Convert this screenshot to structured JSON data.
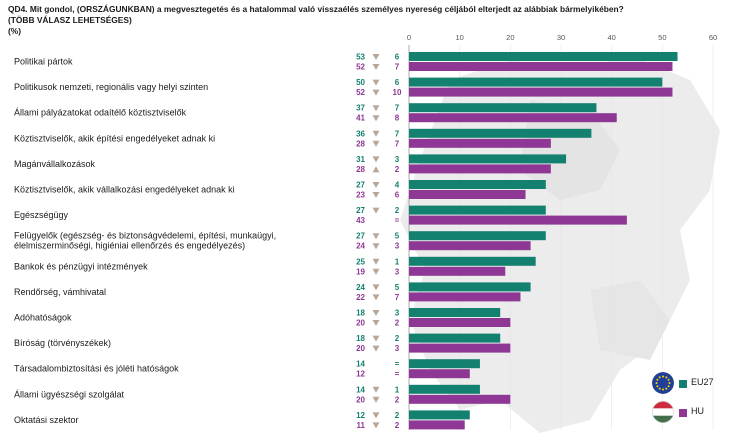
{
  "title": {
    "line1": "QD4. Mit gondol, (ORSZÁGUNKBAN) a megvesztegetés és a hatalommal való visszaélés személyes nyereség céljából elterjedt az alábbiak bármelyikében?",
    "line2": "(TÖBB VÁLASZ LEHETSÉGES)",
    "line3": "(%)"
  },
  "legend": {
    "eu_label": "EU27",
    "hu_label": "HU",
    "eu_icon": "eu-flag-icon",
    "hu_icon": "hungary-flag-icon"
  },
  "colors": {
    "eu": "#14806f",
    "hu": "#8e3795",
    "arrow": "#b7a79b"
  },
  "chart_data": {
    "type": "bar",
    "orientation": "horizontal",
    "xlim": [
      0,
      60
    ],
    "x_ticks": [
      0,
      10,
      20,
      30,
      40,
      50,
      60
    ],
    "categories": [
      "Politikai pártok",
      "Politikusok nemzeti, regionális vagy helyi szinten",
      "Állami pályázatokat odaítélő köztisztviselők",
      "Köztisztviselők, akik építési engedélyeket adnak ki",
      "Magánvállalkozások",
      "Köztisztviselők, akik vállalkozási engedélyeket adnak ki",
      "Egészségügy",
      "Felügyelők (egészség- és biztonságvédelemi, építési, munkaügyi, élelmiszerminőségi, higiéniai ellenőrzés és engedélyezés)",
      "Bankok és pénzügyi intézmények",
      "Rendőrség, vámhivatal",
      "Adóhatóságok",
      "Bíróság (törvényszékek)",
      "Társadalombiztosítási és jóléti hatóságok",
      "Állami ügyészségi szolgálat",
      "Oktatási szektor"
    ],
    "label_lines": [
      [
        "Politikai pártok"
      ],
      [
        "Politikusok nemzeti, regionális vagy helyi szinten"
      ],
      [
        "Állami pályázatokat odaítélő köztisztviselők"
      ],
      [
        "Köztisztviselők, akik építési engedélyeket adnak ki"
      ],
      [
        "Magánvállalkozások"
      ],
      [
        "Köztisztviselők, akik vállalkozási engedélyeket adnak ki"
      ],
      [
        "Egészségügy"
      ],
      [
        "Felügyelők (egészség- és biztonságvédelemi, építési, munkaügyi,",
        "élelmiszerminőségi, higiéniai ellenőrzés és engedélyezés)"
      ],
      [
        "Bankok és pénzügyi intézmények"
      ],
      [
        "Rendőrség, vámhivatal"
      ],
      [
        "Adóhatóságok"
      ],
      [
        "Bíróság (törvényszékek)"
      ],
      [
        "Társadalombiztosítási és jóléti hatóságok"
      ],
      [
        "Állami ügyészségi szolgálat"
      ],
      [
        "Oktatási szektor"
      ]
    ],
    "series": [
      {
        "name": "EU27",
        "values": [
          53,
          50,
          37,
          36,
          31,
          27,
          27,
          27,
          25,
          24,
          18,
          18,
          14,
          14,
          12
        ],
        "change_dir": [
          "down",
          "down",
          "down",
          "down",
          "down",
          "down",
          "down",
          "down",
          "down",
          "down",
          "down",
          "down",
          "equal",
          "down",
          "down"
        ],
        "change_val": [
          "6",
          "6",
          "7",
          "7",
          "3",
          "4",
          "2",
          "5",
          "1",
          "5",
          "3",
          "2",
          "=",
          "1",
          "2"
        ]
      },
      {
        "name": "HU",
        "values": [
          52,
          52,
          41,
          28,
          28,
          23,
          43,
          24,
          19,
          22,
          20,
          20,
          12,
          20,
          11
        ],
        "change_dir": [
          "down",
          "down",
          "down",
          "down",
          "up",
          "down",
          "equal",
          "down",
          "down",
          "down",
          "down",
          "down",
          "equal",
          "down",
          "down"
        ],
        "change_val": [
          "7",
          "10",
          "8",
          "7",
          "2",
          "6",
          "=",
          "3",
          "3",
          "7",
          "2",
          "3",
          "=",
          "2",
          "2"
        ]
      }
    ]
  }
}
